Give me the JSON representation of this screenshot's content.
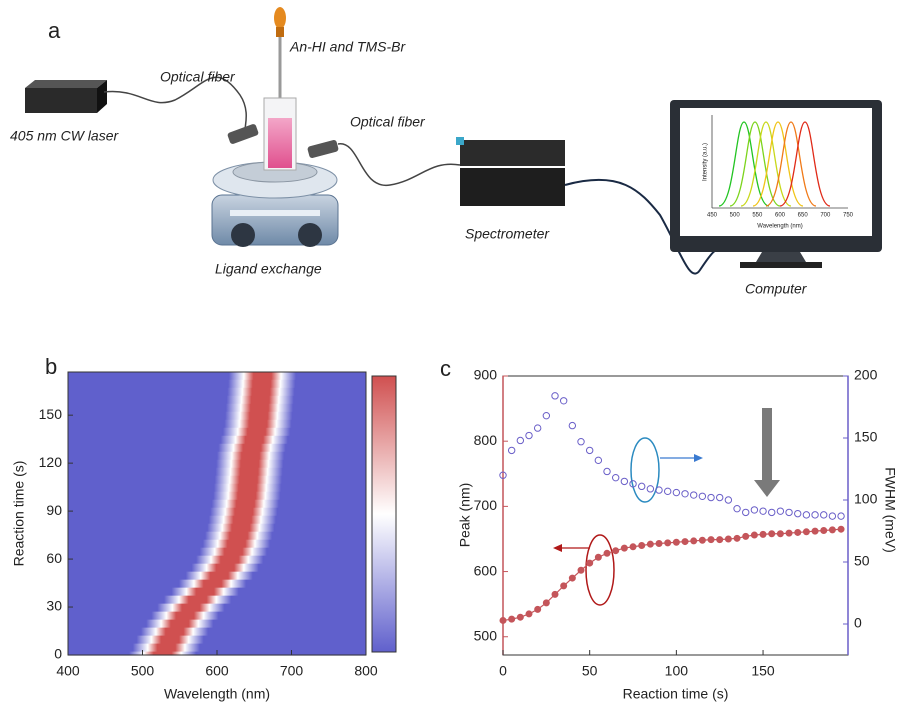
{
  "diagram": {
    "label": "a",
    "laser": "405 nm CW laser",
    "fiber_left": "Optical fiber",
    "reagents": "An-HI and  TMS-Br",
    "stage": "Ligand exchange",
    "fiber_right": "Optical fiber",
    "spectrometer": "Spectrometer",
    "computer": "Computer",
    "screen": {
      "ylabel": "Intensity (a.u.)",
      "xlabel": "Wavelength (nm)",
      "xticks": [
        450,
        500,
        550,
        600,
        650,
        700,
        750
      ]
    }
  },
  "chart_data": [
    {
      "type": "heatmap",
      "panel_label": "b",
      "xlabel": "Wavelength (nm)",
      "ylabel": "Reaction time (s)",
      "xlim": [
        400,
        800
      ],
      "xticks": [
        400,
        500,
        600,
        700,
        800
      ],
      "ylim": [
        0,
        177
      ],
      "yticks": [
        0,
        30,
        60,
        90,
        120,
        150
      ],
      "y": [
        0,
        5,
        10,
        15,
        20,
        25,
        30,
        35,
        40,
        45,
        50,
        55,
        60,
        65,
        70,
        75,
        80,
        85,
        90,
        95,
        100,
        105,
        110,
        115,
        120,
        125,
        130,
        135,
        140,
        145,
        150,
        155,
        160,
        165,
        170,
        175
      ],
      "peak": [
        527,
        532,
        537,
        543,
        550,
        557,
        565,
        574,
        584,
        594,
        603,
        611,
        617,
        622,
        626,
        629,
        632,
        634,
        636,
        638,
        640,
        641,
        642,
        643,
        644,
        645,
        647,
        650,
        653,
        655,
        656,
        657,
        658,
        659,
        660,
        661
      ],
      "colormap": [
        "#6060cc",
        "#ffffff",
        "#d05050"
      ]
    },
    {
      "type": "scatter",
      "panel_label": "c",
      "xlabel": "Reaction time (s)",
      "ylabel": "Peak (nm)",
      "y2label": "FWHM (meV)",
      "xlim": [
        0,
        199
      ],
      "xticks": [
        0,
        50,
        100,
        150
      ],
      "ylim": [
        472,
        900
      ],
      "yticks": [
        500,
        600,
        700,
        800,
        900
      ],
      "y2lim": [
        -25,
        200
      ],
      "y2ticks": [
        0,
        50,
        100,
        150,
        200
      ],
      "x": [
        0,
        5,
        10,
        15,
        20,
        25,
        30,
        35,
        40,
        45,
        50,
        55,
        60,
        65,
        70,
        75,
        80,
        85,
        90,
        95,
        100,
        105,
        110,
        115,
        120,
        125,
        130,
        135,
        140,
        145,
        150,
        155,
        160,
        165,
        170,
        175,
        180,
        185,
        190,
        195
      ],
      "series": [
        {
          "color": "#c4555a",
          "marker": "filled",
          "line": true,
          "values": [
            525,
            527,
            530,
            535,
            542,
            552,
            565,
            578,
            590,
            602,
            613,
            622,
            628,
            632,
            636,
            638,
            640,
            642,
            643,
            644,
            645,
            646,
            647,
            648,
            649,
            649,
            650,
            651,
            654,
            656,
            657,
            658,
            658,
            659,
            660,
            661,
            662,
            663,
            664,
            665
          ]
        },
        {
          "color": "#6a5fc8",
          "marker": "open",
          "axis": "y2",
          "line": false,
          "values": [
            120,
            140,
            148,
            152,
            158,
            168,
            184,
            180,
            160,
            147,
            140,
            132,
            123,
            118,
            115,
            113,
            111,
            109,
            108,
            107,
            106,
            105,
            104,
            103,
            102,
            102,
            100,
            93,
            90,
            92,
            91,
            90,
            91,
            90,
            89,
            88,
            88,
            88,
            87,
            87
          ]
        }
      ]
    }
  ]
}
